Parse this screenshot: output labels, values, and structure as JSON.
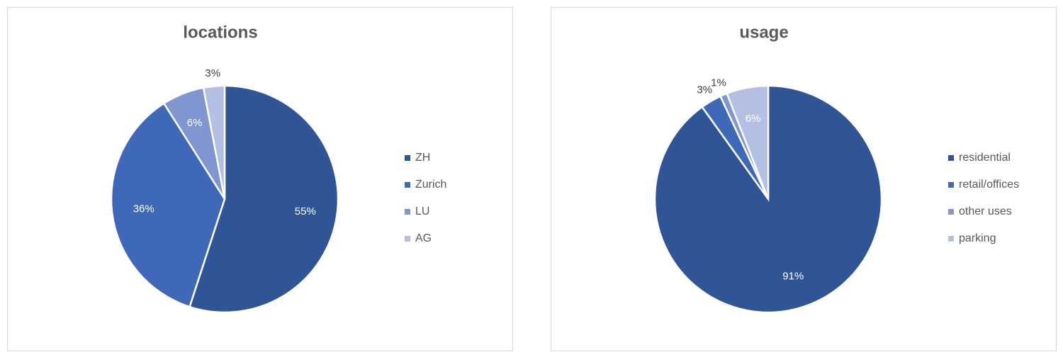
{
  "chart_data": [
    {
      "type": "pie",
      "title": "locations",
      "categories": [
        "ZH",
        "Zurich",
        "LU",
        "AG"
      ],
      "values": [
        55,
        36,
        6,
        3
      ],
      "value_labels": [
        "55%",
        "36%",
        "6%",
        "3%"
      ],
      "colors": [
        "#2f5597",
        "#3f69b8",
        "#7f96d1",
        "#b4c0e3"
      ],
      "legend": "right"
    },
    {
      "type": "pie",
      "title": "usage",
      "categories": [
        "residential",
        "retail/offices",
        "other uses",
        "parking"
      ],
      "values": [
        91,
        3,
        1,
        6
      ],
      "value_labels": [
        "91%",
        "3%",
        "1%",
        "6%"
      ],
      "colors": [
        "#2f5597",
        "#3f69b8",
        "#7f96d1",
        "#b4c0e3"
      ],
      "legend": "right"
    }
  ]
}
